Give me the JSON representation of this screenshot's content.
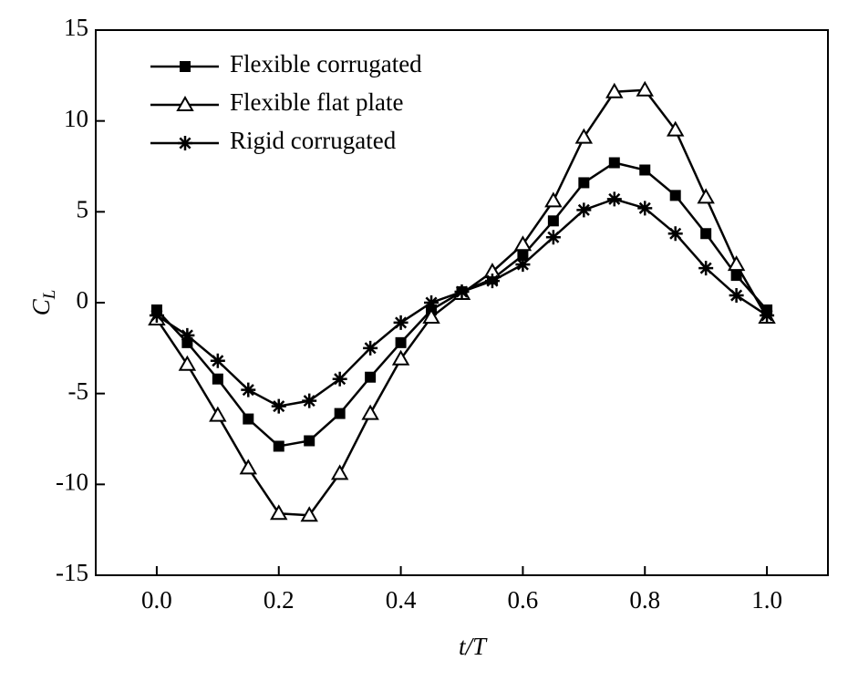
{
  "chart_data": {
    "type": "line",
    "xlabel": "t/T",
    "ylabel": "C",
    "ylabel_sub": "L",
    "x": [
      0,
      0.05,
      0.1,
      0.15,
      0.2,
      0.25,
      0.3,
      0.35,
      0.4,
      0.45,
      0.5,
      0.55,
      0.6,
      0.65,
      0.7,
      0.75,
      0.8,
      0.85,
      0.9,
      0.95,
      1.0
    ],
    "series": [
      {
        "name": "Flexible corrugated",
        "marker": "square",
        "color": "#000000",
        "values": [
          -0.4,
          -2.2,
          -4.2,
          -6.4,
          -7.9,
          -7.6,
          -6.1,
          -4.1,
          -2.2,
          -0.4,
          0.6,
          1.3,
          2.6,
          4.5,
          6.6,
          7.7,
          7.3,
          5.9,
          3.8,
          1.5,
          -0.4
        ]
      },
      {
        "name": "Flexible flat plate",
        "marker": "triangle",
        "color": "#000000",
        "values": [
          -0.9,
          -3.4,
          -6.2,
          -9.1,
          -11.6,
          -11.7,
          -9.4,
          -6.1,
          -3.1,
          -0.8,
          0.5,
          1.7,
          3.2,
          5.6,
          9.1,
          11.6,
          11.7,
          9.5,
          5.8,
          2.1,
          -0.8
        ]
      },
      {
        "name": "Rigid corrugated",
        "marker": "star",
        "color": "#000000",
        "values": [
          -0.7,
          -1.8,
          -3.2,
          -4.8,
          -5.7,
          -5.4,
          -4.2,
          -2.5,
          -1.1,
          0,
          0.6,
          1.2,
          2.1,
          3.6,
          5.1,
          5.7,
          5.2,
          3.8,
          1.9,
          0.4,
          -0.7
        ]
      }
    ],
    "xlim": [
      -0.1,
      1.1
    ],
    "xticks": [
      {
        "value": 0,
        "label": "0.0"
      },
      0.2,
      0.4,
      0.6,
      0.8,
      {
        "value": 1,
        "label": "1.0"
      }
    ],
    "ylim": [
      -15,
      15
    ],
    "yticks": [
      -15,
      -10,
      -5,
      0,
      5,
      10,
      15
    ],
    "legend": "upper left",
    "grid": false
  }
}
